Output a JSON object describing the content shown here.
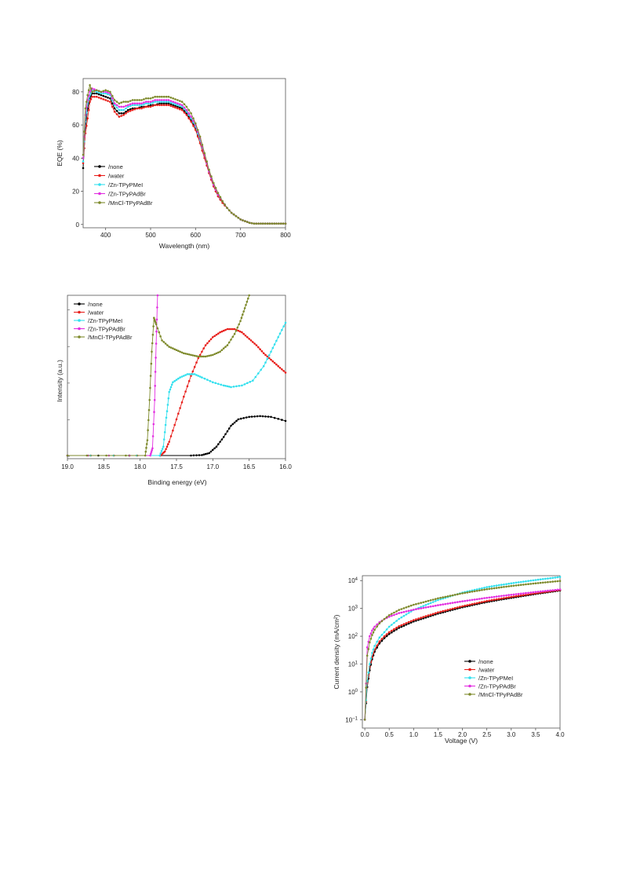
{
  "colors": {
    "none": "#000000",
    "water": "#e8201c",
    "zn_tpypmei": "#33e0ee",
    "zn_tpypadbr": "#e22fe0",
    "mncl_tpypadbr": "#7e8a2c"
  },
  "chart_data": [
    {
      "type": "line",
      "xlabel": "Wavelength (nm)",
      "ylabel": "EQE (%)",
      "xlim": [
        350,
        800
      ],
      "ylim": [
        -2,
        88
      ],
      "xticks": [
        "400",
        "500",
        "600",
        "700",
        "800"
      ],
      "yticks": [
        "0",
        "20",
        "40",
        "60",
        "80"
      ],
      "legend_position": "lower-left",
      "grid": false,
      "x": [
        350,
        355,
        360,
        365,
        370,
        380,
        390,
        400,
        410,
        420,
        430,
        440,
        450,
        460,
        470,
        480,
        490,
        500,
        510,
        520,
        530,
        540,
        550,
        560,
        570,
        580,
        590,
        600,
        610,
        620,
        630,
        640,
        650,
        660,
        670,
        680,
        690,
        700,
        710,
        720,
        730,
        740,
        750,
        760,
        770,
        780,
        790,
        800
      ],
      "series": [
        {
          "name": "/none",
          "color_key": "none",
          "values": [
            34,
            58,
            70,
            76,
            79,
            79,
            78,
            77,
            76,
            70,
            67,
            67,
            69,
            70,
            70,
            71,
            71,
            72,
            72,
            73,
            73,
            73,
            72,
            71,
            70,
            67,
            63,
            58,
            49,
            40,
            31,
            23,
            17,
            13,
            10,
            7,
            5,
            3,
            2,
            1,
            0.5,
            0.5,
            0.5,
            0.5,
            0.5,
            0.5,
            0.5,
            0.5
          ]
        },
        {
          "name": "/water",
          "color_key": "water",
          "values": [
            37,
            55,
            64,
            74,
            77,
            77,
            76,
            75,
            74,
            68,
            65,
            66,
            68,
            69,
            70,
            70,
            71,
            71,
            72,
            72,
            72,
            72,
            71,
            70,
            69,
            66,
            62,
            57,
            49,
            40,
            31,
            23,
            17,
            13,
            10,
            7,
            5,
            3,
            2,
            1,
            0.5,
            0.5,
            0.5,
            0.5,
            0.5,
            0.5,
            0.5,
            0.5
          ]
        },
        {
          "name": "/Zn-TPyPMeI",
          "color_key": "zn_tpypmei",
          "values": [
            38,
            62,
            73,
            78,
            81,
            80,
            79,
            79,
            78,
            72,
            69,
            69,
            71,
            72,
            72,
            72,
            73,
            73,
            74,
            74,
            74,
            74,
            73,
            72,
            71,
            68,
            64,
            59,
            51,
            42,
            32,
            24,
            18,
            14,
            10,
            7,
            5,
            3,
            2,
            1,
            0.5,
            0.5,
            0.5,
            0.5,
            0.5,
            0.5,
            0.5,
            0.5
          ]
        },
        {
          "name": "/Zn-TPyPAdBr",
          "color_key": "zn_tpypadbr",
          "values": [
            40,
            66,
            75,
            80,
            82,
            81,
            80,
            80,
            79,
            73,
            71,
            71,
            72,
            73,
            73,
            73,
            74,
            74,
            75,
            75,
            75,
            75,
            74,
            73,
            72,
            69,
            65,
            60,
            52,
            42,
            32,
            24,
            18,
            14,
            10,
            7,
            5,
            3,
            2,
            1,
            0.5,
            0.5,
            0.5,
            0.5,
            0.5,
            0.5,
            0.5,
            0.5
          ]
        },
        {
          "name": "/MnCl-TPyPAdBr",
          "color_key": "mncl_tpypadbr",
          "values": [
            42,
            70,
            78,
            84,
            80,
            81,
            80,
            81,
            80,
            75,
            73,
            74,
            74,
            75,
            75,
            75,
            76,
            76,
            77,
            77,
            77,
            77,
            76,
            75,
            74,
            71,
            67,
            61,
            53,
            43,
            33,
            25,
            19,
            14,
            10,
            7,
            5,
            3,
            2,
            1,
            0.5,
            0.5,
            0.5,
            0.5,
            0.5,
            0.5,
            0.5,
            0.5
          ]
        }
      ]
    },
    {
      "type": "line",
      "xlabel": "Binding energy (eV)",
      "ylabel": "Intensity (a.u.)",
      "xlim": [
        19.0,
        16.0
      ],
      "ylim": [
        0,
        100
      ],
      "x_reversed": true,
      "xticks": [
        "19.0",
        "18.5",
        "18.0",
        "17.5",
        "17.0",
        "16.5",
        "16.0"
      ],
      "legend_position": "top-left",
      "grid": false,
      "series": [
        {
          "name": "/none",
          "color_key": "none",
          "points": [
            [
              19.0,
              0.5
            ],
            [
              17.3,
              0.5
            ],
            [
              17.15,
              0.8
            ],
            [
              17.05,
              2
            ],
            [
              16.95,
              6
            ],
            [
              16.85,
              12
            ],
            [
              16.75,
              19
            ],
            [
              16.65,
              23
            ],
            [
              16.5,
              24.5
            ],
            [
              16.35,
              25
            ],
            [
              16.2,
              24.5
            ],
            [
              16.0,
              22
            ]
          ]
        },
        {
          "name": "/water",
          "color_key": "water",
          "points": [
            [
              19.0,
              0.5
            ],
            [
              17.72,
              0.5
            ],
            [
              17.66,
              3
            ],
            [
              17.6,
              9
            ],
            [
              17.5,
              23
            ],
            [
              17.4,
              37
            ],
            [
              17.3,
              50
            ],
            [
              17.2,
              61
            ],
            [
              17.1,
              69
            ],
            [
              17.0,
              74
            ],
            [
              16.9,
              77
            ],
            [
              16.8,
              79
            ],
            [
              16.7,
              79
            ],
            [
              16.6,
              77
            ],
            [
              16.5,
              73
            ],
            [
              16.4,
              69
            ],
            [
              16.3,
              64
            ],
            [
              16.2,
              60
            ],
            [
              16.1,
              56
            ],
            [
              16.0,
              52
            ]
          ]
        },
        {
          "name": "/Zn-TPyPMeI",
          "color_key": "zn_tpypmei",
          "points": [
            [
              19.0,
              0.5
            ],
            [
              17.73,
              0.5
            ],
            [
              17.68,
              6
            ],
            [
              17.64,
              24
            ],
            [
              17.6,
              40
            ],
            [
              17.55,
              46
            ],
            [
              17.45,
              49
            ],
            [
              17.35,
              51
            ],
            [
              17.25,
              51
            ],
            [
              17.15,
              49
            ],
            [
              17.0,
              46
            ],
            [
              16.85,
              44
            ],
            [
              16.75,
              43
            ],
            [
              16.6,
              44
            ],
            [
              16.45,
              47
            ],
            [
              16.3,
              56
            ],
            [
              16.2,
              65
            ],
            [
              16.1,
              74
            ],
            [
              16.0,
              83
            ]
          ]
        },
        {
          "name": "/Zn-TPyPAdBr",
          "color_key": "zn_tpypadbr",
          "points": [
            [
              19.0,
              0.5
            ],
            [
              17.86,
              0.5
            ],
            [
              17.83,
              5
            ],
            [
              17.8,
              35
            ],
            [
              17.78,
              70
            ],
            [
              17.76,
              100
            ]
          ]
        },
        {
          "name": "/MnCl-TPyPAdBr",
          "color_key": "mncl_tpypadbr",
          "points": [
            [
              19.0,
              0.5
            ],
            [
              17.93,
              0.5
            ],
            [
              17.9,
              10
            ],
            [
              17.87,
              35
            ],
            [
              17.84,
              65
            ],
            [
              17.81,
              86
            ],
            [
              17.78,
              82
            ],
            [
              17.7,
              72
            ],
            [
              17.6,
              68
            ],
            [
              17.5,
              66
            ],
            [
              17.4,
              64
            ],
            [
              17.3,
              63
            ],
            [
              17.2,
              62
            ],
            [
              17.1,
              62
            ],
            [
              17.0,
              63
            ],
            [
              16.9,
              65
            ],
            [
              16.8,
              69
            ],
            [
              16.7,
              76
            ],
            [
              16.62,
              84
            ],
            [
              16.56,
              92
            ],
            [
              16.5,
              100
            ]
          ]
        }
      ]
    },
    {
      "type": "line",
      "xlabel": "Voltage (V)",
      "ylabel": "Current density (mA/cm²)",
      "y_scale": "log",
      "xlim": [
        -0.05,
        4.0
      ],
      "ylim": [
        0.05,
        15000
      ],
      "xticks": [
        "0.0",
        "0.5",
        "1.0",
        "1.5",
        "2.0",
        "2.5",
        "3.0",
        "3.5",
        "4.0"
      ],
      "ytick_values": [
        0.1,
        1,
        10,
        100,
        1000,
        10000
      ],
      "ytick_mantissa": "10",
      "ytick_exponents": [
        "−1",
        "0",
        "1",
        "2",
        "3",
        "4"
      ],
      "legend_position": "lower-right",
      "grid": false,
      "x": [
        0.0,
        0.05,
        0.1,
        0.15,
        0.2,
        0.3,
        0.4,
        0.5,
        0.7,
        1.0,
        1.5,
        2.0,
        2.5,
        3.0,
        3.5,
        4.0
      ],
      "series": [
        {
          "name": "/none",
          "color_key": "none",
          "values": [
            0.1,
            1.5,
            6,
            15,
            28,
            55,
            85,
            120,
            200,
            340,
            650,
            1100,
            1700,
            2400,
            3300,
            4400
          ]
        },
        {
          "name": "/water",
          "color_key": "water",
          "values": [
            0.1,
            2,
            8,
            18,
            33,
            65,
            100,
            140,
            230,
            380,
            720,
            1200,
            1850,
            2600,
            3500,
            4600
          ]
        },
        {
          "name": "/Zn-TPyPMeI",
          "color_key": "zn_tpypmei",
          "values": [
            0.1,
            2.5,
            10,
            25,
            45,
            90,
            140,
            220,
            420,
            880,
            2000,
            3700,
            5800,
            8000,
            10500,
            13500
          ]
        },
        {
          "name": "/Zn-TPyPAdBr",
          "color_key": "zn_tpypadbr",
          "values": [
            0.1,
            40,
            100,
            160,
            220,
            320,
            410,
            500,
            680,
            900,
            1300,
            1800,
            2400,
            3100,
            3900,
            4800
          ]
        },
        {
          "name": "/MnCl-TPyPAdBr",
          "color_key": "mncl_tpypadbr",
          "values": [
            0.1,
            20,
            60,
            110,
            170,
            290,
            420,
            570,
            880,
            1350,
            2300,
            3500,
            4900,
            6400,
            8000,
            9700
          ]
        }
      ]
    }
  ]
}
